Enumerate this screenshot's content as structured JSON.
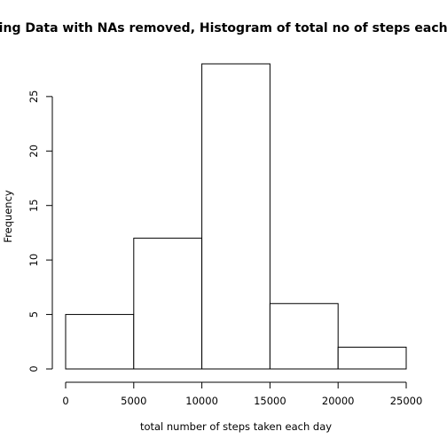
{
  "chart_data": {
    "type": "bar",
    "title": "using Data with NAs removed, Histogram of total no of steps each day",
    "xlabel": "total number of steps taken each day",
    "ylabel": "Frequency",
    "bins": [
      {
        "from": 0,
        "to": 5000,
        "count": 5
      },
      {
        "from": 5000,
        "to": 10000,
        "count": 12
      },
      {
        "from": 10000,
        "to": 15000,
        "count": 28
      },
      {
        "from": 15000,
        "to": 20000,
        "count": 6
      },
      {
        "from": 20000,
        "to": 25000,
        "count": 2
      }
    ],
    "xlim": [
      0,
      25000
    ],
    "ylim": [
      0,
      28
    ],
    "xticks": [
      0,
      5000,
      10000,
      15000,
      20000,
      25000
    ],
    "yticks": [
      0,
      5,
      10,
      15,
      20,
      25
    ],
    "grid": false,
    "legend": "none"
  }
}
